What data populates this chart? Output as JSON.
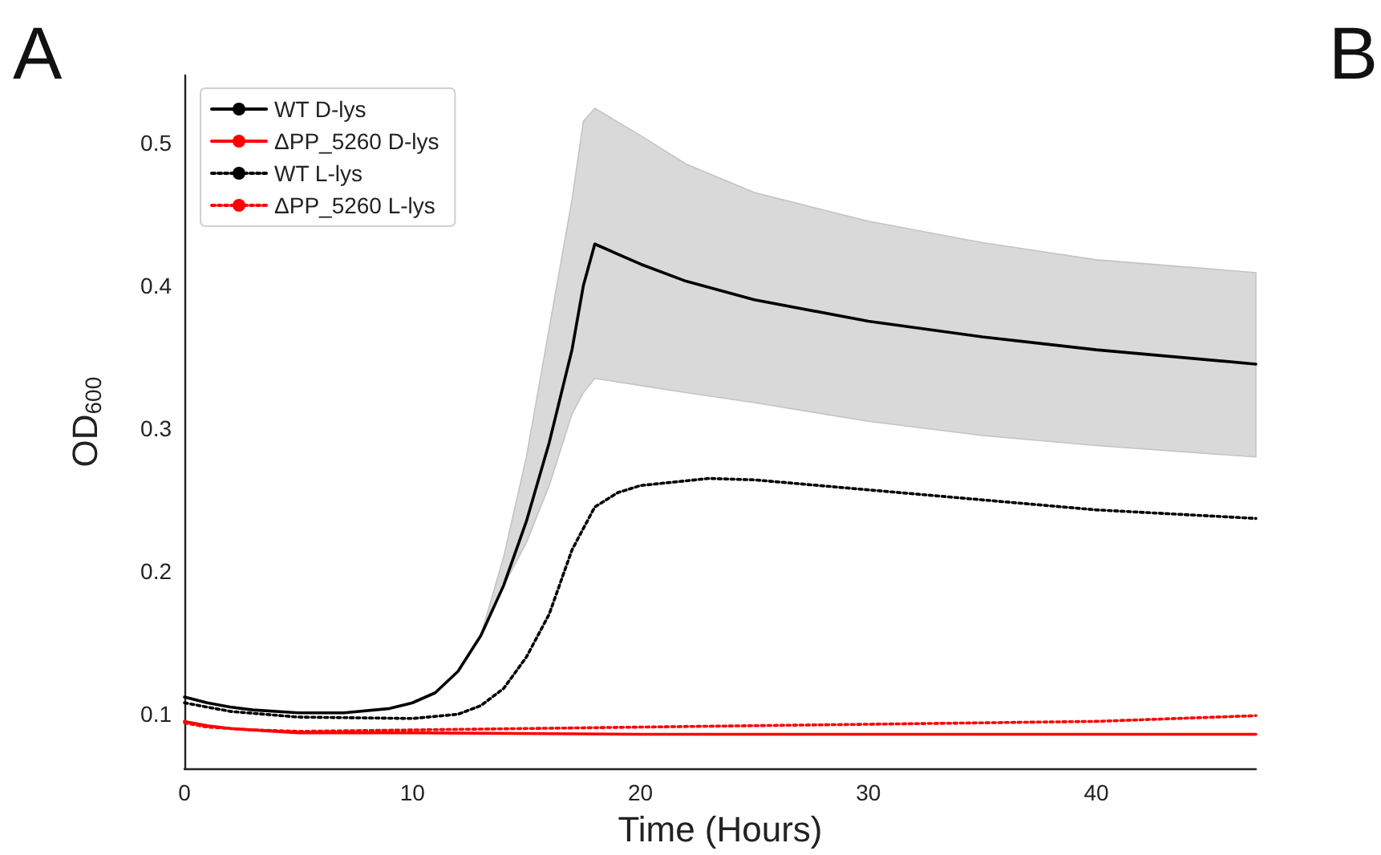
{
  "chart_data": {
    "type": "line",
    "xlabel": "Time (Hours)",
    "ylabel": "OD$_{600}$",
    "annotations": [
      "A",
      "B"
    ],
    "xlim": [
      0,
      47
    ],
    "xticks": [
      0,
      10,
      20,
      30,
      40
    ],
    "ylim": [
      0.062,
      0.547
    ],
    "yticks": [
      0.1,
      0.2,
      0.3,
      0.4,
      0.5
    ],
    "grid": false,
    "legend": "top left",
    "marker": "none",
    "series": [
      {
        "name": "WT D-lys",
        "color": "#000000",
        "line_style": "solid",
        "x": [
          0,
          1,
          2,
          3,
          5,
          7,
          9,
          10,
          11,
          12,
          13,
          14,
          15,
          16,
          17,
          17.5,
          18,
          20,
          22,
          25,
          30,
          35,
          40,
          47
        ],
        "values": [
          0.112,
          0.108,
          0.105,
          0.103,
          0.101,
          0.101,
          0.104,
          0.108,
          0.115,
          0.13,
          0.155,
          0.19,
          0.235,
          0.29,
          0.355,
          0.4,
          0.429,
          0.415,
          0.403,
          0.39,
          0.375,
          0.364,
          0.355,
          0.345
        ],
        "lower": [
          0.112,
          0.108,
          0.105,
          0.103,
          0.101,
          0.101,
          0.104,
          0.108,
          0.115,
          0.13,
          0.155,
          0.19,
          0.22,
          0.26,
          0.31,
          0.325,
          0.335,
          0.33,
          0.325,
          0.318,
          0.305,
          0.295,
          0.288,
          0.28
        ],
        "upper": [
          0.112,
          0.108,
          0.105,
          0.103,
          0.101,
          0.101,
          0.104,
          0.108,
          0.115,
          0.13,
          0.155,
          0.21,
          0.28,
          0.37,
          0.46,
          0.515,
          0.524,
          0.505,
          0.485,
          0.465,
          0.445,
          0.43,
          0.418,
          0.409
        ]
      },
      {
        "name": "ΔPP_5260 D-lys",
        "color": "#ff0000",
        "line_style": "solid",
        "x": [
          0,
          1,
          2,
          3,
          5,
          10,
          20,
          30,
          40,
          47
        ],
        "values": [
          0.095,
          0.092,
          0.09,
          0.089,
          0.087,
          0.087,
          0.086,
          0.086,
          0.086,
          0.086
        ]
      },
      {
        "name": "WT L-lys",
        "color": "#000000",
        "line_style": "dotted",
        "x": [
          0,
          2,
          5,
          10,
          12,
          13,
          14,
          15,
          16,
          17,
          18,
          19,
          20,
          23,
          25,
          30,
          35,
          40,
          47
        ],
        "values": [
          0.108,
          0.102,
          0.098,
          0.097,
          0.1,
          0.106,
          0.118,
          0.14,
          0.17,
          0.215,
          0.245,
          0.255,
          0.26,
          0.265,
          0.264,
          0.257,
          0.25,
          0.243,
          0.237
        ]
      },
      {
        "name": "ΔPP_5260 L-lys",
        "color": "#ff0000",
        "line_style": "dotted",
        "x": [
          0,
          1,
          3,
          5,
          15,
          25,
          35,
          40,
          47
        ],
        "values": [
          0.094,
          0.091,
          0.089,
          0.088,
          0.09,
          0.092,
          0.094,
          0.095,
          0.099
        ]
      }
    ]
  }
}
